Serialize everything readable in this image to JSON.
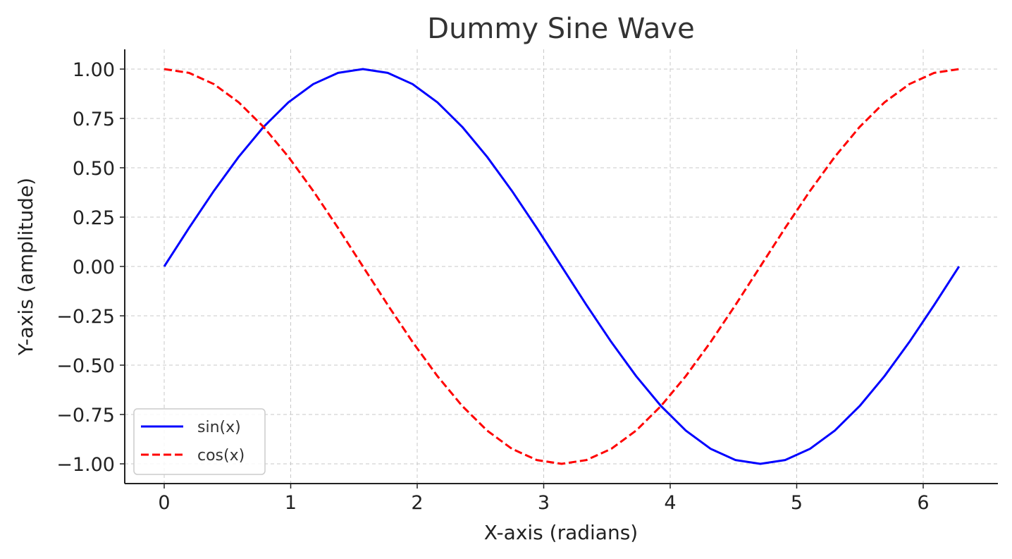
{
  "chart_data": {
    "type": "line",
    "title": "Dummy Sine Wave",
    "xlabel": "X-axis (radians)",
    "ylabel": "Y-axis (amplitude)",
    "xlim": [
      -0.31,
      6.6
    ],
    "ylim": [
      -1.1,
      1.1
    ],
    "x_ticks": [
      0,
      1,
      2,
      3,
      4,
      5,
      6
    ],
    "x_tick_labels": [
      "0",
      "1",
      "2",
      "3",
      "4",
      "5",
      "6"
    ],
    "y_ticks": [
      1.0,
      0.75,
      0.5,
      0.25,
      0.0,
      -0.25,
      -0.5,
      -0.75,
      -1.0
    ],
    "y_tick_labels": [
      "1.00",
      "0.75",
      "0.50",
      "0.25",
      "0.00",
      "−0.25",
      "−0.50",
      "−0.75",
      "−1.00"
    ],
    "grid": true,
    "legend_position": "lower-left",
    "series": [
      {
        "name": "sin(x)",
        "color": "#0000ff",
        "style": "solid",
        "x": [
          0.0,
          0.1963,
          0.3927,
          0.589,
          0.7854,
          0.9817,
          1.1781,
          1.3744,
          1.5708,
          1.7671,
          1.9635,
          2.1598,
          2.3562,
          2.5525,
          2.7489,
          2.9452,
          3.1416,
          3.3379,
          3.5343,
          3.7306,
          3.927,
          4.1233,
          4.3197,
          4.516,
          4.7124,
          4.9087,
          5.1051,
          5.3014,
          5.4978,
          5.6941,
          5.8905,
          6.0868,
          6.2832
        ],
        "y": [
          0.0,
          0.1951,
          0.3827,
          0.5556,
          0.7071,
          0.8315,
          0.9239,
          0.9808,
          1.0,
          0.9808,
          0.9239,
          0.8315,
          0.7071,
          0.5556,
          0.3827,
          0.1951,
          0.0,
          -0.1951,
          -0.3827,
          -0.5556,
          -0.7071,
          -0.8315,
          -0.9239,
          -0.9808,
          -1.0,
          -0.9808,
          -0.9239,
          -0.8315,
          -0.7071,
          -0.5556,
          -0.3827,
          -0.1951,
          0.0
        ]
      },
      {
        "name": "cos(x)",
        "color": "#ff0000",
        "style": "dashed",
        "x": [
          0.0,
          0.1963,
          0.3927,
          0.589,
          0.7854,
          0.9817,
          1.1781,
          1.3744,
          1.5708,
          1.7671,
          1.9635,
          2.1598,
          2.3562,
          2.5525,
          2.7489,
          2.9452,
          3.1416,
          3.3379,
          3.5343,
          3.7306,
          3.927,
          4.1233,
          4.3197,
          4.516,
          4.7124,
          4.9087,
          5.1051,
          5.3014,
          5.4978,
          5.6941,
          5.8905,
          6.0868,
          6.2832
        ],
        "y": [
          1.0,
          0.9808,
          0.9239,
          0.8315,
          0.7071,
          0.5556,
          0.3827,
          0.1951,
          0.0,
          -0.1951,
          -0.3827,
          -0.5556,
          -0.7071,
          -0.8315,
          -0.9239,
          -0.9808,
          -1.0,
          -0.9808,
          -0.9239,
          -0.8315,
          -0.7071,
          -0.5556,
          -0.3827,
          -0.1951,
          0.0,
          0.1951,
          0.3827,
          0.5556,
          0.7071,
          0.8315,
          0.9239,
          0.9808,
          1.0
        ]
      }
    ]
  }
}
